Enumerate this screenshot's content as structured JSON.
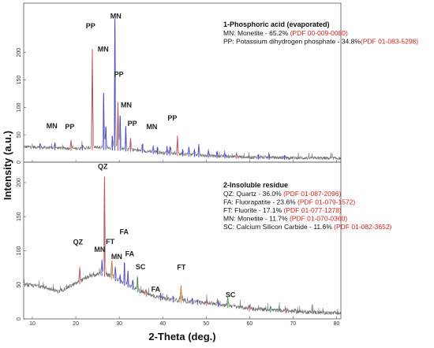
{
  "chart_data": {
    "type": "line",
    "xlabel": "2-Theta (deg.)",
    "ylabel": "Intensity (a.u.)",
    "x_ticks": [
      10,
      20,
      30,
      40,
      50,
      60,
      70,
      80
    ],
    "xlim": [
      8,
      81
    ],
    "panels": [
      {
        "id": "phosphoric",
        "ylim": [
          0,
          290
        ],
        "y_ticks": [
          0,
          50,
          100,
          150,
          200
        ],
        "legend": {
          "title": "1-Phosphoric acid (evaporated)",
          "entries": [
            {
              "code": "MN",
              "text": "MN: Monetite - 65.2% ",
              "ref": "(PDF 00-009-0080)"
            },
            {
              "code": "PP",
              "text": "PP: Potassium dihydrogen phosphate - 34.8%",
              "ref": "(PDF 01-083-5298)"
            }
          ]
        },
        "background": [
          [
            8,
            28
          ],
          [
            15,
            26
          ],
          [
            20,
            25
          ],
          [
            25,
            27
          ],
          [
            30,
            25
          ],
          [
            35,
            21
          ],
          [
            40,
            17
          ],
          [
            50,
            12
          ],
          [
            60,
            9
          ],
          [
            70,
            8
          ],
          [
            81,
            7
          ]
        ],
        "peaks": [
          {
            "x": 11.8,
            "y": 7,
            "color": "#3a3aff"
          },
          {
            "x": 15.2,
            "y": 10,
            "color": "#3a3aff"
          },
          {
            "x": 18.9,
            "y": 14,
            "color": "#e34a4a"
          },
          {
            "x": 21.5,
            "y": 6,
            "color": "#3a3aff"
          },
          {
            "x": 23.8,
            "y": 180,
            "color": "#e34a4a"
          },
          {
            "x": 26.4,
            "y": 100,
            "color": "#3a3aff"
          },
          {
            "x": 26.9,
            "y": 38,
            "color": "#3a3aff"
          },
          {
            "x": 28.4,
            "y": 22,
            "color": "#3a3aff"
          },
          {
            "x": 29.0,
            "y": 236,
            "color": "#3a3aff"
          },
          {
            "x": 29.7,
            "y": 84,
            "color": "#e34a4a"
          },
          {
            "x": 30.2,
            "y": 60,
            "color": "#3a3aff"
          },
          {
            "x": 31.5,
            "y": 42,
            "color": "#3a3aff"
          },
          {
            "x": 32.6,
            "y": 20,
            "color": "#e34a4a"
          },
          {
            "x": 35.3,
            "y": 12,
            "color": "#3a3aff"
          },
          {
            "x": 37.8,
            "y": 10,
            "color": "#3a3aff"
          },
          {
            "x": 38.8,
            "y": 9,
            "color": "#3a3aff"
          },
          {
            "x": 41.0,
            "y": 12,
            "color": "#3a3aff"
          },
          {
            "x": 41.7,
            "y": 12,
            "color": "#3a3aff"
          },
          {
            "x": 43.4,
            "y": 32,
            "color": "#e34a4a"
          },
          {
            "x": 44.6,
            "y": 9,
            "color": "#3a3aff"
          },
          {
            "x": 46.0,
            "y": 14,
            "color": "#3a3aff"
          },
          {
            "x": 47.3,
            "y": 10,
            "color": "#3a3aff"
          },
          {
            "x": 48.3,
            "y": 20,
            "color": "#3a3aff"
          },
          {
            "x": 50.5,
            "y": 10,
            "color": "#3a3aff"
          },
          {
            "x": 52.5,
            "y": 8,
            "color": "#3a3aff"
          },
          {
            "x": 54.3,
            "y": 6,
            "color": "#3a3aff"
          },
          {
            "x": 57.0,
            "y": 6,
            "color": "#e34a4a"
          },
          {
            "x": 62.0,
            "y": 5,
            "color": "#3a3aff"
          },
          {
            "x": 64.5,
            "y": 5,
            "color": "#3a3aff"
          },
          {
            "x": 68.0,
            "y": 4,
            "color": "#3a3aff"
          }
        ],
        "labels": [
          {
            "text": "MN",
            "x": 14.5,
            "y": 62
          },
          {
            "text": "PP",
            "x": 18.6,
            "y": 60
          },
          {
            "text": "PP",
            "x": 23.4,
            "y": 244
          },
          {
            "text": "MN",
            "x": 26.3,
            "y": 202
          },
          {
            "text": "MN",
            "x": 29.2,
            "y": 262
          },
          {
            "text": "PP",
            "x": 29.9,
            "y": 156
          },
          {
            "text": "MN",
            "x": 31.6,
            "y": 100
          },
          {
            "text": "PP",
            "x": 33.0,
            "y": 66
          },
          {
            "text": "MN",
            "x": 37.5,
            "y": 60
          },
          {
            "text": "PP",
            "x": 42.2,
            "y": 76
          }
        ]
      },
      {
        "id": "insoluble",
        "ylim": [
          0,
          230
        ],
        "y_ticks": [
          0,
          50,
          100,
          150,
          200
        ],
        "legend": {
          "title": "2-Insoluble residue",
          "entries": [
            {
              "code": "QZ",
              "text": "QZ: Quartz - 36.0% ",
              "ref": "(PDF 01-087-2096)"
            },
            {
              "code": "FA",
              "text": "FA: Fluorapatite - 23.6% ",
              "ref": "(PDF 01-079-1572)"
            },
            {
              "code": "FT",
              "text": "FT: Fluorite - 17.1% ",
              "ref": "(PDF 01-077-1278)"
            },
            {
              "code": "MN",
              "text": "MN: Monetite - 11.7% ",
              "ref": "(PDF 01-070-0360)"
            },
            {
              "code": "SC",
              "text": "SC: Calcium Silicon Carbide - 11.6% ",
              "ref": "(PDF 01-082-3652)"
            }
          ]
        },
        "background": [
          [
            8,
            50
          ],
          [
            12,
            48
          ],
          [
            16,
            40
          ],
          [
            20,
            52
          ],
          [
            23,
            62
          ],
          [
            26,
            67
          ],
          [
            28,
            63
          ],
          [
            32,
            50
          ],
          [
            36,
            37
          ],
          [
            40,
            30
          ],
          [
            45,
            26
          ],
          [
            50,
            23
          ],
          [
            55,
            20
          ],
          [
            60,
            15
          ],
          [
            70,
            11
          ],
          [
            81,
            8
          ]
        ],
        "peaks": [
          {
            "x": 20.9,
            "y": 21,
            "color": "#e34a4a"
          },
          {
            "x": 26.0,
            "y": 18,
            "color": "#3a3aff"
          },
          {
            "x": 26.6,
            "y": 143,
            "color": "#e34a4a"
          },
          {
            "x": 28.3,
            "y": 22,
            "color": "#ff7f0e"
          },
          {
            "x": 29.1,
            "y": 16,
            "color": "#3a3aff"
          },
          {
            "x": 30.2,
            "y": 8,
            "color": "#3a3aff"
          },
          {
            "x": 31.2,
            "y": 30,
            "color": "#3a3aff"
          },
          {
            "x": 32.0,
            "y": 20,
            "color": "#3a3aff"
          },
          {
            "x": 33.1,
            "y": 10,
            "color": "#3a3aff"
          },
          {
            "x": 34.2,
            "y": 18,
            "color": "#2ca02c"
          },
          {
            "x": 36.2,
            "y": 6,
            "color": "#e34a4a"
          },
          {
            "x": 39.5,
            "y": 7,
            "color": "#3a3aff"
          },
          {
            "x": 42.4,
            "y": 5,
            "color": "#3a3aff"
          },
          {
            "x": 44.2,
            "y": 20,
            "color": "#ff7f0e"
          },
          {
            "x": 46.8,
            "y": 5,
            "color": "#3a3aff"
          },
          {
            "x": 48.0,
            "y": 4,
            "color": "#3a3aff"
          },
          {
            "x": 50.1,
            "y": 5,
            "color": "#e34a4a"
          },
          {
            "x": 52.8,
            "y": 4,
            "color": "#3a3aff"
          },
          {
            "x": 55.0,
            "y": 10,
            "color": "#2ca02c"
          },
          {
            "x": 59.9,
            "y": 4,
            "color": "#e34a4a"
          },
          {
            "x": 64.8,
            "y": 6,
            "color": "#2ca02c"
          },
          {
            "x": 68.3,
            "y": 3,
            "color": "#e34a4a"
          }
        ],
        "labels": [
          {
            "text": "QZ",
            "x": 20.5,
            "y": 109
          },
          {
            "text": "QZ",
            "x": 26.2,
            "y": 220
          },
          {
            "text": "MN",
            "x": 25.5,
            "y": 98
          },
          {
            "text": "FT",
            "x": 27.9,
            "y": 110
          },
          {
            "text": "MN",
            "x": 29.4,
            "y": 88
          },
          {
            "text": "FA",
            "x": 31.1,
            "y": 124
          },
          {
            "text": "FA",
            "x": 32.4,
            "y": 92
          },
          {
            "text": "SC",
            "x": 34.9,
            "y": 73
          },
          {
            "text": "FA",
            "x": 38.4,
            "y": 40
          },
          {
            "text": "FT",
            "x": 44.3,
            "y": 72
          },
          {
            "text": "SC",
            "x": 55.6,
            "y": 32
          }
        ]
      }
    ]
  }
}
